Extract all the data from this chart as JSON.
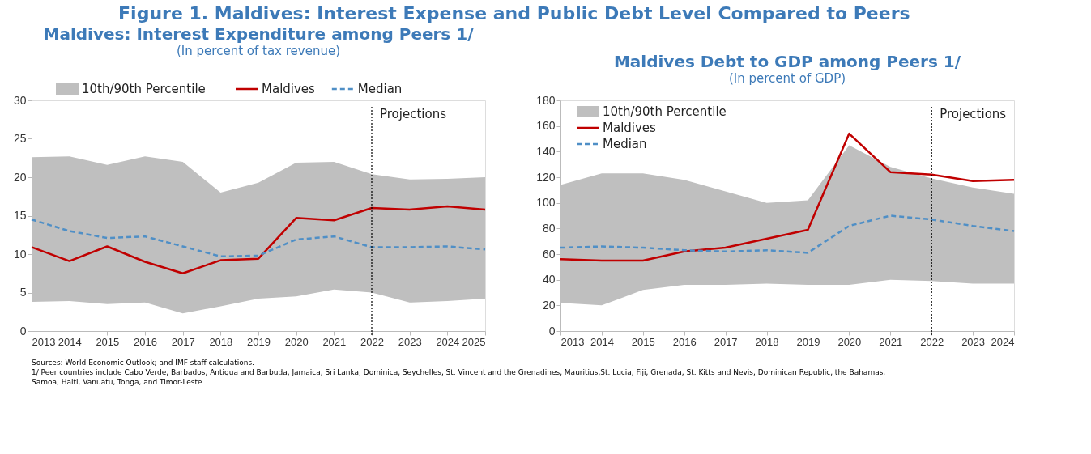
{
  "chart_data": [
    {
      "type": "line",
      "title": "Maldives: Interest Expenditure among Peers 1/",
      "subtitle": "(In percent of tax revenue)",
      "categories": [
        "2013",
        "2014",
        "2015",
        "2016",
        "2017",
        "2018",
        "2019",
        "2020",
        "2021",
        "2022",
        "2023",
        "2024",
        "2025"
      ],
      "series": [
        {
          "name": "10th/90th Percentile",
          "type": "area",
          "color": "#bfbfbf",
          "values": [
            null,
            null,
            null,
            null,
            null,
            null,
            null,
            null,
            null,
            null,
            null,
            null,
            null
          ],
          "lower": [
            3.8,
            3.9,
            3.5,
            3.7,
            2.3,
            3.2,
            4.2,
            4.5,
            5.4,
            5.0,
            3.7,
            3.9,
            4.2
          ],
          "upper": [
            22.6,
            22.7,
            21.6,
            22.7,
            22.0,
            18.0,
            19.3,
            21.9,
            22.0,
            20.4,
            19.7,
            19.8,
            20.0
          ]
        },
        {
          "name": "Maldives",
          "color": "#c00000",
          "line_style": "solid",
          "values": [
            10.9,
            9.1,
            11.0,
            9.0,
            7.5,
            9.2,
            9.4,
            14.7,
            14.4,
            16.0,
            15.8,
            16.2,
            15.8
          ]
        },
        {
          "name": "Median",
          "color": "#4f8fc6",
          "line_style": "dashed",
          "values": [
            14.5,
            13.0,
            12.1,
            12.3,
            11.0,
            9.7,
            9.8,
            11.9,
            12.3,
            10.9,
            10.9,
            11.0,
            10.6
          ]
        }
      ],
      "ylim": [
        0,
        30
      ],
      "yticks": [
        0,
        5,
        10,
        15,
        20,
        25,
        30
      ],
      "legend": "top",
      "ref_lines": [
        {
          "axis": "x",
          "value": "2022",
          "label": "Projections",
          "color": "#000000",
          "line_style": "dotted"
        }
      ],
      "annotations": [
        "Figure 1. Maldives: Interest Expense and Public Debt Level Compared to Peers",
        "Sources: World Economic Outlook; and IMF staff calculations.",
        "1/ Peer countries include Cabo Verde, Barbados, Antigua and Barbuda, Jamaica, Sri Lanka, Dominica, Seychelles, St. Vincent and the Grenadines, Mauritius,St. Lucia, Fiji, Grenada, St. Kitts and Nevis, Dominican Republic, the Bahamas, Samoa, Haiti, Vanuatu, Tonga, and Timor-Leste."
      ]
    },
    {
      "type": "line",
      "title": "Maldives Debt to GDP among Peers 1/",
      "subtitle": "(In percent of GDP)",
      "categories": [
        "2013",
        "2014",
        "2015",
        "2016",
        "2017",
        "2018",
        "2019",
        "2020",
        "2021",
        "2022",
        "2023",
        "2024"
      ],
      "series": [
        {
          "name": "10th/90th Percentile",
          "type": "area",
          "color": "#bfbfbf",
          "values": [
            null,
            null,
            null,
            null,
            null,
            null,
            null,
            null,
            null,
            null,
            null,
            null
          ],
          "lower": [
            22,
            20,
            32,
            36,
            36,
            37,
            36,
            36,
            40,
            39,
            37,
            37
          ],
          "upper": [
            114,
            123,
            123,
            118,
            109,
            100,
            102,
            145,
            128,
            119,
            112,
            107
          ]
        },
        {
          "name": "Maldives",
          "color": "#c00000",
          "line_style": "solid",
          "values": [
            56,
            55,
            55,
            62,
            65,
            72,
            79,
            154,
            124,
            122,
            117,
            118
          ]
        },
        {
          "name": "Median",
          "color": "#4f8fc6",
          "line_style": "dashed",
          "values": [
            65,
            66,
            65,
            63,
            62,
            63,
            61,
            82,
            90,
            87,
            82,
            78
          ]
        }
      ],
      "ylim": [
        0,
        180
      ],
      "yticks": [
        0,
        20,
        40,
        60,
        80,
        100,
        120,
        140,
        160,
        180
      ],
      "legend": "top left",
      "ref_lines": [
        {
          "axis": "x",
          "value": "2022",
          "label": "Projections",
          "color": "#000000",
          "line_style": "dotted"
        }
      ]
    }
  ]
}
